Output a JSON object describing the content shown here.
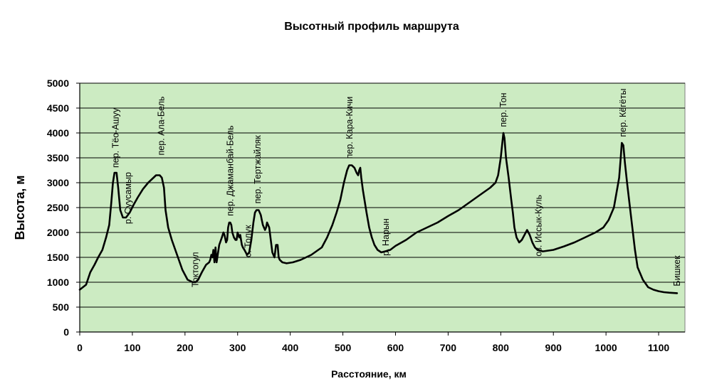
{
  "chart_data": {
    "type": "line",
    "title": "Высотный профиль маршрута",
    "xlabel": "Расстояние, км",
    "ylabel": "Высота, м",
    "xlim": [
      0,
      1150
    ],
    "ylim": [
      0,
      5000
    ],
    "xticks": [
      "0",
      "100",
      "200",
      "300",
      "400",
      "500",
      "600",
      "700",
      "800",
      "900",
      "1000",
      "1100"
    ],
    "yticks": [
      "0",
      "500",
      "1000",
      "1500",
      "2000",
      "2500",
      "3000",
      "3500",
      "4000",
      "4500",
      "5000"
    ],
    "grid": true,
    "legend": "none",
    "colors": {
      "plot_bg": "#ccebc2",
      "line": "#000000",
      "grid": "#000000"
    },
    "series": [
      {
        "x": [
          0,
          12,
          20,
          28,
          35,
          43,
          50,
          56,
          60,
          63,
          66,
          70,
          73,
          77,
          82,
          88,
          95,
          102,
          110,
          120,
          130,
          140,
          145,
          148,
          152,
          156,
          160,
          163,
          168,
          175,
          185,
          195,
          205,
          215,
          220,
          225,
          232,
          240,
          246,
          248,
          250,
          252,
          254,
          256,
          258,
          260,
          265,
          270,
          273,
          275,
          278,
          280,
          282,
          284,
          286,
          288,
          290,
          293,
          296,
          298,
          300,
          303,
          305,
          308,
          310,
          313,
          318,
          322,
          326,
          330,
          333,
          336,
          338,
          340,
          342,
          344,
          346,
          348,
          350,
          352,
          354,
          356,
          358,
          360,
          363,
          366,
          370,
          373,
          376,
          378,
          380,
          385,
          393,
          405,
          420,
          440,
          460,
          470,
          480,
          488,
          495,
          502,
          508,
          512,
          517,
          522,
          526,
          529,
          531,
          533,
          535,
          538,
          545,
          550,
          555,
          560,
          566,
          573,
          580,
          590,
          600,
          620,
          640,
          660,
          680,
          700,
          720,
          740,
          760,
          780,
          790,
          795,
          800,
          803,
          805,
          807,
          810,
          815,
          820,
          823,
          826,
          830,
          835,
          840,
          845,
          850,
          855,
          860,
          865,
          870,
          880,
          900,
          920,
          940,
          960,
          980,
          995,
          1005,
          1015,
          1020,
          1025,
          1028,
          1030,
          1033,
          1036,
          1040,
          1045,
          1050,
          1055,
          1060,
          1070,
          1080,
          1090,
          1100,
          1110,
          1120,
          1135
        ],
        "y": [
          850,
          950,
          1200,
          1350,
          1500,
          1650,
          1900,
          2150,
          2600,
          3000,
          3200,
          3200,
          2900,
          2450,
          2300,
          2300,
          2400,
          2550,
          2700,
          2870,
          3000,
          3100,
          3150,
          3150,
          3150,
          3100,
          2900,
          2450,
          2100,
          1850,
          1550,
          1250,
          1050,
          1000,
          1000,
          1050,
          1200,
          1350,
          1400,
          1450,
          1550,
          1500,
          1650,
          1400,
          1700,
          1400,
          1750,
          1900,
          2000,
          1950,
          1800,
          1850,
          2100,
          2200,
          2200,
          2150,
          2000,
          1900,
          1850,
          1850,
          2000,
          1900,
          1950,
          1750,
          1700,
          1650,
          1550,
          1600,
          1850,
          2200,
          2400,
          2450,
          2450,
          2450,
          2400,
          2350,
          2250,
          2150,
          2100,
          2050,
          2100,
          2200,
          2150,
          2100,
          1850,
          1600,
          1500,
          1750,
          1750,
          1500,
          1450,
          1400,
          1380,
          1400,
          1450,
          1550,
          1700,
          1900,
          2150,
          2400,
          2650,
          3000,
          3250,
          3350,
          3350,
          3300,
          3200,
          3150,
          3250,
          3300,
          3100,
          2850,
          2400,
          2100,
          1900,
          1750,
          1650,
          1600,
          1620,
          1650,
          1730,
          1850,
          2000,
          2100,
          2200,
          2330,
          2450,
          2600,
          2750,
          2900,
          3000,
          3150,
          3500,
          3800,
          4000,
          3900,
          3500,
          3100,
          2650,
          2400,
          2100,
          1900,
          1800,
          1850,
          1950,
          2050,
          1950,
          1800,
          1700,
          1650,
          1620,
          1650,
          1720,
          1800,
          1900,
          2000,
          2100,
          2250,
          2500,
          2800,
          3100,
          3500,
          3800,
          3750,
          3400,
          3000,
          2550,
          2100,
          1650,
          1300,
          1050,
          900,
          850,
          820,
          800,
          790,
          780
        ]
      }
    ],
    "annotations": [
      {
        "text": "пер. Тёо-Ашуу",
        "x": 68,
        "y_from": 3300
      },
      {
        "text": "р. Суусамыр",
        "x": 92,
        "y_from": 2170
      },
      {
        "text": "пер. Ала-Бель",
        "x": 155,
        "y_from": 3550
      },
      {
        "text": "Токтогул",
        "x": 220,
        "y_from": 900
      },
      {
        "text": "пер. Джаманбай-Бель",
        "x": 286,
        "y_from": 2330
      },
      {
        "text": "с. Толук",
        "x": 320,
        "y_from": 1500
      },
      {
        "text": "пер. Тертжайляк",
        "x": 338,
        "y_from": 2580
      },
      {
        "text": "пер. Кара-Кичи",
        "x": 513,
        "y_from": 3480
      },
      {
        "text": "р. Нарын",
        "x": 582,
        "y_from": 1530
      },
      {
        "text": "пер. Тон",
        "x": 805,
        "y_from": 4120
      },
      {
        "text": "оз. Иссык-Куль",
        "x": 872,
        "y_from": 1520
      },
      {
        "text": "пер. Кёгёты",
        "x": 1032,
        "y_from": 3920
      },
      {
        "text": "Бишкек",
        "x": 1135,
        "y_from": 920
      }
    ]
  }
}
